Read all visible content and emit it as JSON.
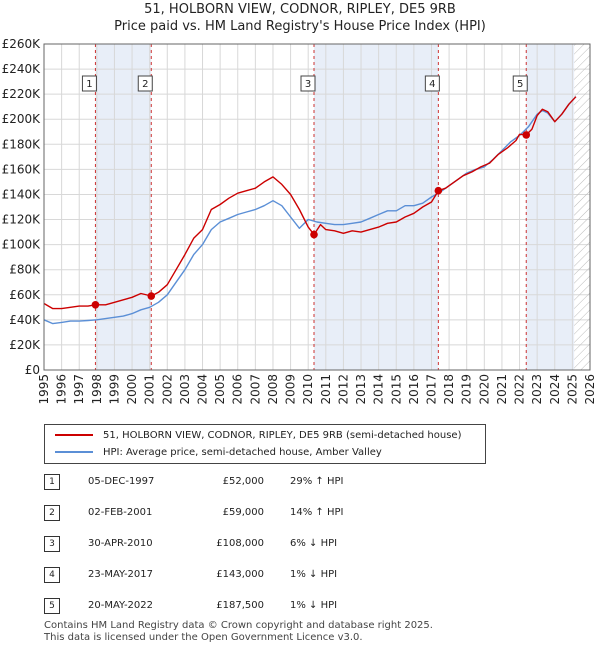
{
  "title_line1": "51, HOLBORN VIEW, CODNOR, RIPLEY, DE5 9RB",
  "title_line2": "Price paid vs. HM Land Registry's House Price Index (HPI)",
  "chart_data": {
    "type": "line",
    "xlim": [
      1995,
      2026
    ],
    "ylim": [
      0,
      260000
    ],
    "y_ticks": [
      0,
      20000,
      40000,
      60000,
      80000,
      100000,
      120000,
      140000,
      160000,
      180000,
      200000,
      220000,
      240000,
      260000
    ],
    "y_tick_labels": [
      "£0",
      "£20K",
      "£40K",
      "£60K",
      "£80K",
      "£100K",
      "£120K",
      "£140K",
      "£160K",
      "£180K",
      "£200K",
      "£220K",
      "£240K",
      "£260K"
    ],
    "x_ticks": [
      1995,
      1996,
      1997,
      1998,
      1999,
      2000,
      2001,
      2002,
      2003,
      2004,
      2005,
      2006,
      2007,
      2008,
      2009,
      2010,
      2011,
      2012,
      2013,
      2014,
      2015,
      2016,
      2017,
      2018,
      2019,
      2020,
      2021,
      2022,
      2023,
      2024,
      2025,
      2026
    ],
    "x_tick_labels": [
      "1995",
      "1996",
      "1997",
      "1998",
      "1999",
      "2000",
      "2001",
      "2002",
      "2003",
      "2004",
      "2005",
      "2006",
      "2007",
      "2008",
      "2009",
      "2010",
      "2011",
      "2012",
      "2013",
      "2014",
      "2015",
      "2016",
      "2017",
      "2018",
      "2019",
      "2020",
      "2021",
      "2022",
      "2023",
      "2024",
      "2025",
      "2026"
    ],
    "colors": {
      "property": "#cc0000",
      "hpi": "#5b8fd6",
      "band": "#e8eef8",
      "grid": "#d8d8d8",
      "event_line": "#cc3333"
    },
    "hatched_future_from": 2025.1,
    "series": [
      {
        "name": "51, HOLBORN VIEW, CODNOR, RIPLEY, DE5 9RB (semi-detached house)",
        "color": "#cc0000",
        "x": [
          1995.0,
          1995.5,
          1996.0,
          1996.5,
          1997.0,
          1997.5,
          1997.92,
          1998.5,
          1999.0,
          1999.5,
          2000.0,
          2000.5,
          2001.09,
          2001.5,
          2002.0,
          2002.5,
          2003.0,
          2003.5,
          2004.0,
          2004.5,
          2005.0,
          2005.5,
          2006.0,
          2006.5,
          2007.0,
          2007.5,
          2008.0,
          2008.5,
          2009.0,
          2009.5,
          2010.0,
          2010.33,
          2010.7,
          2011.0,
          2011.5,
          2012.0,
          2012.5,
          2013.0,
          2013.5,
          2014.0,
          2014.5,
          2015.0,
          2015.5,
          2016.0,
          2016.5,
          2017.0,
          2017.39,
          2017.8,
          2018.3,
          2018.8,
          2019.3,
          2019.8,
          2020.3,
          2020.8,
          2021.3,
          2021.8,
          2022.0,
          2022.38,
          2022.7,
          2023.0,
          2023.3,
          2023.6,
          2024.0,
          2024.4,
          2024.8,
          2025.2
        ],
        "values": [
          53000,
          49000,
          49000,
          50000,
          51000,
          51000,
          52000,
          52000,
          54000,
          56000,
          58000,
          61000,
          59000,
          62000,
          68000,
          80000,
          92000,
          105000,
          112000,
          128000,
          132000,
          137000,
          141000,
          143000,
          145000,
          150000,
          154000,
          148000,
          140000,
          128000,
          114000,
          108000,
          116000,
          112000,
          111000,
          109000,
          111000,
          110000,
          112000,
          114000,
          117000,
          118000,
          122000,
          125000,
          130000,
          134000,
          143000,
          145000,
          150000,
          155000,
          158000,
          162000,
          165000,
          172000,
          177000,
          183000,
          188000,
          187500,
          192000,
          203000,
          208000,
          206000,
          198000,
          204000,
          212000,
          218000
        ]
      },
      {
        "name": "HPI: Average price, semi-detached house, Amber Valley",
        "color": "#5b8fd6",
        "x": [
          1995.0,
          1995.5,
          1996.0,
          1996.5,
          1997.0,
          1997.5,
          1998.0,
          1998.5,
          1999.0,
          1999.5,
          2000.0,
          2000.5,
          2001.0,
          2001.5,
          2002.0,
          2002.5,
          2003.0,
          2003.5,
          2004.0,
          2004.5,
          2005.0,
          2005.5,
          2006.0,
          2006.5,
          2007.0,
          2007.5,
          2008.0,
          2008.5,
          2009.0,
          2009.5,
          2010.0,
          2010.5,
          2011.0,
          2011.5,
          2012.0,
          2012.5,
          2013.0,
          2013.5,
          2014.0,
          2014.5,
          2015.0,
          2015.5,
          2016.0,
          2016.5,
          2017.0,
          2017.5,
          2018.0,
          2018.5,
          2019.0,
          2019.5,
          2020.0,
          2020.5,
          2021.0,
          2021.5,
          2022.0,
          2022.5,
          2023.0,
          2023.3,
          2023.6,
          2024.0,
          2024.4,
          2024.8,
          2025.2
        ],
        "values": [
          40000,
          37000,
          38000,
          39000,
          39000,
          39500,
          40000,
          41000,
          42000,
          43000,
          45000,
          48000,
          50000,
          54000,
          60000,
          70000,
          80000,
          92000,
          100000,
          112000,
          118000,
          121000,
          124000,
          126000,
          128000,
          131000,
          135000,
          131000,
          122000,
          113000,
          120000,
          118000,
          117000,
          116000,
          116000,
          117000,
          118000,
          121000,
          124000,
          127000,
          127000,
          131000,
          131000,
          133000,
          138000,
          142000,
          147000,
          152000,
          157000,
          160000,
          162000,
          168000,
          175000,
          182000,
          187000,
          194000,
          204000,
          207000,
          205000,
          198000,
          204000,
          212000,
          218000
        ]
      }
    ],
    "events": [
      {
        "label": "1",
        "x": 1997.92,
        "value": 52000
      },
      {
        "label": "2",
        "x": 2001.09,
        "value": 59000
      },
      {
        "label": "3",
        "x": 2010.33,
        "value": 108000
      },
      {
        "label": "4",
        "x": 2017.39,
        "value": 143000
      },
      {
        "label": "5",
        "x": 2022.38,
        "value": 187500
      }
    ]
  },
  "legend": {
    "property_label": "51, HOLBORN VIEW, CODNOR, RIPLEY, DE5 9RB (semi-detached house)",
    "hpi_label": "HPI: Average price, semi-detached house, Amber Valley"
  },
  "sales": [
    {
      "num": "1",
      "date": "05-DEC-1997",
      "price": "£52,000",
      "hpi": "29% ↑ HPI"
    },
    {
      "num": "2",
      "date": "02-FEB-2001",
      "price": "£59,000",
      "hpi": "14% ↑ HPI"
    },
    {
      "num": "3",
      "date": "30-APR-2010",
      "price": "£108,000",
      "hpi": "6% ↓ HPI"
    },
    {
      "num": "4",
      "date": "23-MAY-2017",
      "price": "£143,000",
      "hpi": "1% ↓ HPI"
    },
    {
      "num": "5",
      "date": "20-MAY-2022",
      "price": "£187,500",
      "hpi": "1% ↓ HPI"
    }
  ],
  "footer_line1": "Contains HM Land Registry data © Crown copyright and database right 2025.",
  "footer_line2": "This data is licensed under the Open Government Licence v3.0."
}
